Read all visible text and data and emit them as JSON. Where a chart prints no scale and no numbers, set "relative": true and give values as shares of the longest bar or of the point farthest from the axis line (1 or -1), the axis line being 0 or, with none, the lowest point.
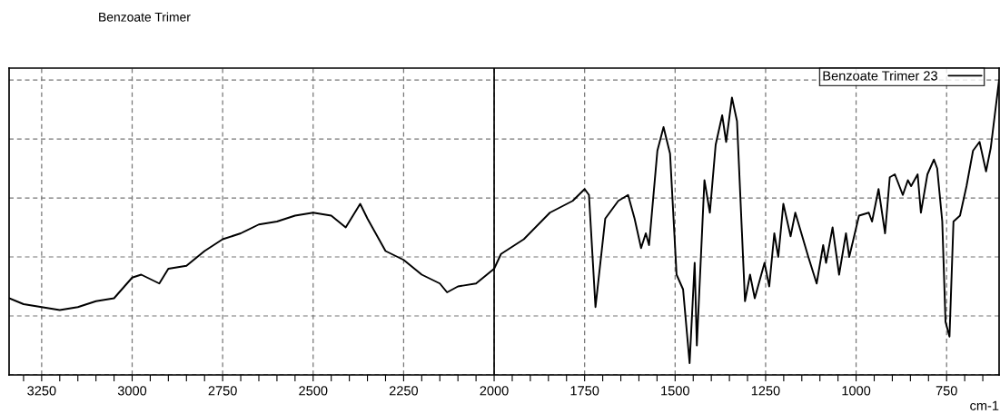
{
  "chart_data": {
    "type": "line",
    "title": "Benzoate Trimer",
    "xlabel": "cm-1",
    "relative": true,
    "xlim": [
      3340,
      605
    ],
    "xticks": [
      {
        "value": 3300,
        "label": null
      },
      3250,
      {
        "value": 3200,
        "label": null
      },
      {
        "value": 3150,
        "label": null
      },
      {
        "value": 3100,
        "label": null
      },
      {
        "value": 3050,
        "label": null
      },
      3000,
      {
        "value": 2950,
        "label": null
      },
      {
        "value": 2900,
        "label": null
      },
      {
        "value": 2850,
        "label": null
      },
      {
        "value": 2800,
        "label": null
      },
      2750,
      {
        "value": 2700,
        "label": null
      },
      {
        "value": 2650,
        "label": null
      },
      {
        "value": 2600,
        "label": null
      },
      {
        "value": 2550,
        "label": null
      },
      2500,
      {
        "value": 2450,
        "label": null
      },
      {
        "value": 2400,
        "label": null
      },
      {
        "value": 2350,
        "label": null
      },
      {
        "value": 2300,
        "label": null
      },
      2250,
      {
        "value": 2200,
        "label": null
      },
      {
        "value": 2150,
        "label": null
      },
      {
        "value": 2100,
        "label": null
      },
      {
        "value": 2050,
        "label": null
      },
      2000,
      {
        "value": 1950,
        "label": null
      },
      {
        "value": 1900,
        "label": null
      },
      {
        "value": 1850,
        "label": null
      },
      {
        "value": 1800,
        "label": null
      },
      1750,
      {
        "value": 1700,
        "label": null
      },
      {
        "value": 1650,
        "label": null
      },
      {
        "value": 1600,
        "label": null
      },
      {
        "value": 1550,
        "label": null
      },
      1500,
      {
        "value": 1450,
        "label": null
      },
      {
        "value": 1400,
        "label": null
      },
      {
        "value": 1350,
        "label": null
      },
      {
        "value": 1300,
        "label": null
      },
      1250,
      {
        "value": 1200,
        "label": null
      },
      {
        "value": 1150,
        "label": null
      },
      {
        "value": 1100,
        "label": null
      },
      {
        "value": 1050,
        "label": null
      },
      1000,
      {
        "value": 950,
        "label": null
      },
      {
        "value": 900,
        "label": null
      },
      {
        "value": 850,
        "label": null
      },
      {
        "value": 800,
        "label": null
      },
      750,
      {
        "value": 700,
        "label": null
      },
      {
        "value": 650,
        "label": null
      }
    ],
    "grid": true,
    "legend": "top right",
    "line_style": "solid",
    "marker": "none",
    "ref_lines": [
      {
        "axis": "x",
        "value": 2000,
        "label": null,
        "color": "#000000",
        "line_style": "solid"
      }
    ],
    "series": [
      {
        "name": "Benzoate Trimer 23",
        "color": "#000000",
        "x": [
          3340,
          3300,
          3250,
          3200,
          3150,
          3100,
          3050,
          3000,
          2975,
          2925,
          2900,
          2850,
          2800,
          2750,
          2700,
          2650,
          2600,
          2550,
          2500,
          2450,
          2410,
          2370,
          2350,
          2300,
          2250,
          2200,
          2150,
          2130,
          2100,
          2050,
          2020,
          2000,
          1981,
          1918,
          1846,
          1783,
          1750,
          1738,
          1720,
          1693,
          1657,
          1630,
          1612,
          1594,
          1581,
          1572,
          1549,
          1532,
          1514,
          1496,
          1478,
          1460,
          1446,
          1440,
          1419,
          1404,
          1388,
          1370,
          1359,
          1343,
          1329,
          1307,
          1293,
          1280,
          1253,
          1240,
          1226,
          1215,
          1201,
          1181,
          1168,
          1132,
          1109,
          1091,
          1083,
          1065,
          1047,
          1028,
          1019,
          992,
          965,
          956,
          938,
          920,
          907,
          893,
          871,
          857,
          848,
          830,
          821,
          803,
          785,
          776,
          762,
          753,
          742,
          731,
          713,
          695,
          677,
          659,
          641,
          628,
          605
        ],
        "values": [
          0.26,
          0.24,
          0.23,
          0.22,
          0.23,
          0.25,
          0.26,
          0.33,
          0.34,
          0.31,
          0.36,
          0.37,
          0.42,
          0.46,
          0.48,
          0.51,
          0.52,
          0.54,
          0.55,
          0.54,
          0.5,
          0.58,
          0.53,
          0.42,
          0.39,
          0.34,
          0.31,
          0.28,
          0.3,
          0.31,
          0.34,
          0.36,
          0.41,
          0.46,
          0.55,
          0.59,
          0.63,
          0.61,
          0.23,
          0.53,
          0.59,
          0.61,
          0.53,
          0.43,
          0.48,
          0.44,
          0.76,
          0.84,
          0.75,
          0.34,
          0.29,
          0.04,
          0.38,
          0.1,
          0.66,
          0.55,
          0.78,
          0.88,
          0.79,
          0.94,
          0.86,
          0.25,
          0.34,
          0.26,
          0.38,
          0.3,
          0.48,
          0.4,
          0.58,
          0.47,
          0.55,
          0.4,
          0.31,
          0.44,
          0.38,
          0.5,
          0.34,
          0.48,
          0.4,
          0.54,
          0.55,
          0.52,
          0.63,
          0.48,
          0.67,
          0.68,
          0.61,
          0.66,
          0.64,
          0.68,
          0.55,
          0.68,
          0.73,
          0.7,
          0.52,
          0.18,
          0.13,
          0.52,
          0.54,
          0.64,
          0.76,
          0.79,
          0.69,
          0.77,
          1.0
        ]
      }
    ]
  }
}
